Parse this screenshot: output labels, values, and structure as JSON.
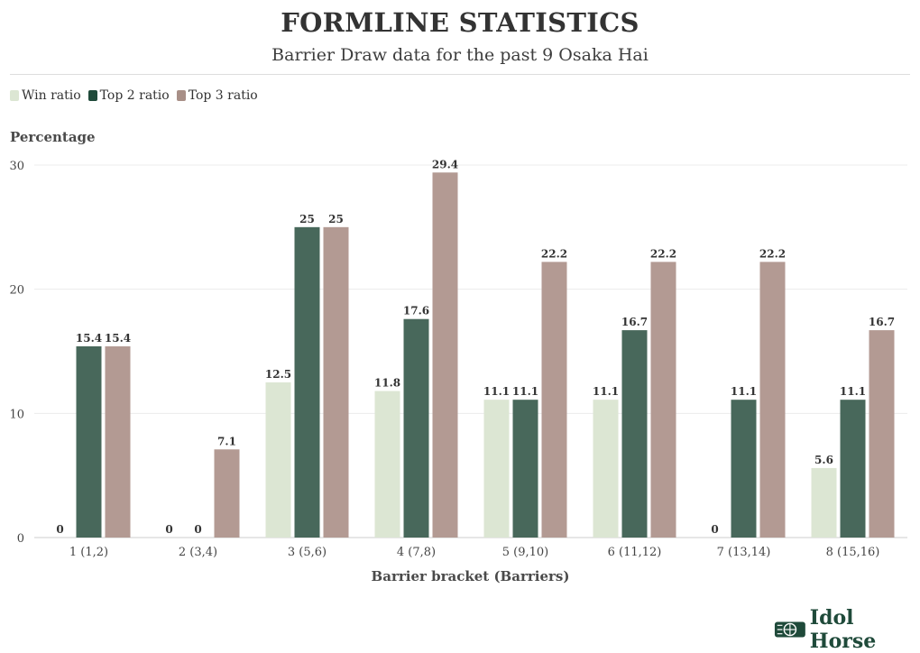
{
  "header": {
    "title": "FORMLINE STATISTICS",
    "subtitle": "Barrier Draw data for the past 9 Osaka Hai"
  },
  "brand": {
    "name": "Idol Horse"
  },
  "chart_data": {
    "type": "bar",
    "title": "FORMLINE STATISTICS",
    "subtitle": "Barrier Draw data for the past 9 Osaka Hai",
    "xlabel": "Barrier bracket (Barriers)",
    "ylabel": "Percentage",
    "ylim": [
      0,
      30
    ],
    "yticks": [
      0,
      10,
      20,
      30
    ],
    "grid": true,
    "legend_position": "top-left",
    "categories": [
      "1 (1,2)",
      "2 (3,4)",
      "3 (5,6)",
      "4 (7,8)",
      "5 (9,10)",
      "6 (11,12)",
      "7 (13,14)",
      "8 (15,16)"
    ],
    "series": [
      {
        "name": "Win ratio",
        "color": "#dce6d3",
        "values": [
          0,
          0,
          12.5,
          11.8,
          11.1,
          11.1,
          0,
          5.6
        ]
      },
      {
        "name": "Top 2 ratio",
        "color": "#48685b",
        "values": [
          15.4,
          0,
          25,
          17.6,
          11.1,
          16.7,
          11.1,
          11.1
        ]
      },
      {
        "name": "Top 3 ratio",
        "color": "#b39a93",
        "values": [
          15.4,
          7.1,
          25,
          29.4,
          22.2,
          22.2,
          22.2,
          16.7
        ]
      }
    ]
  }
}
